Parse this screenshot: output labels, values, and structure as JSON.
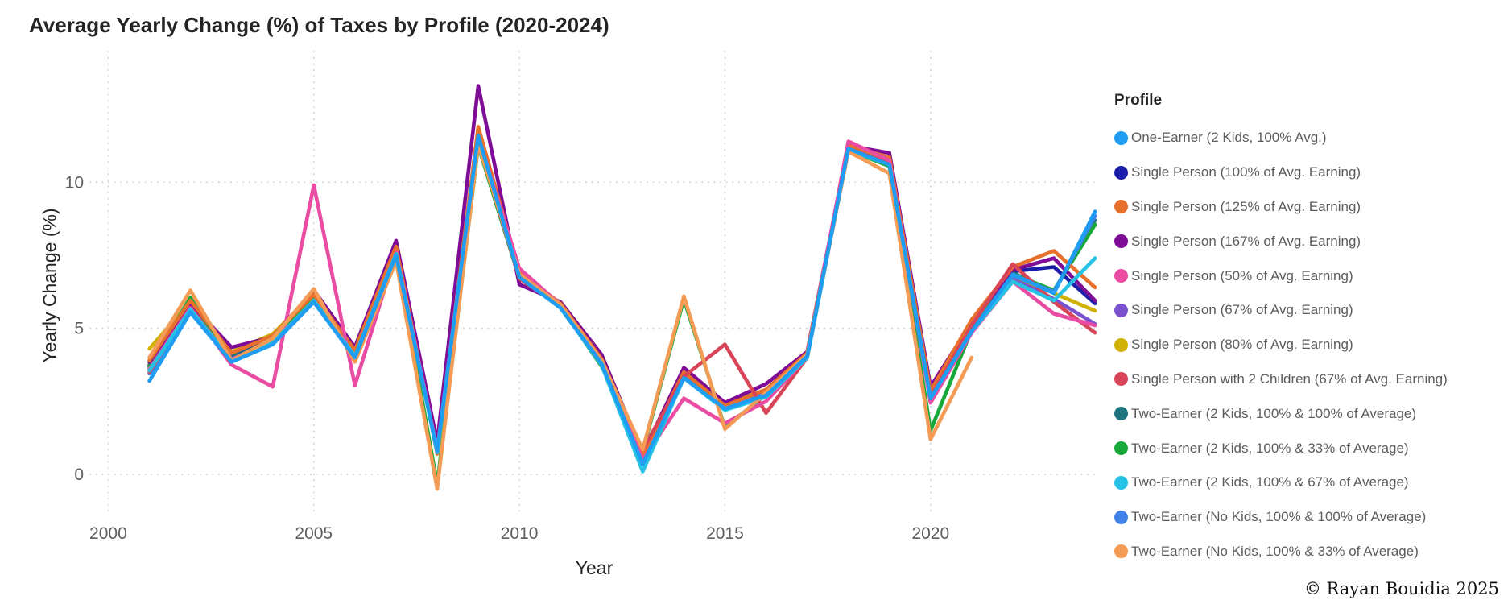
{
  "title": "Average Yearly Change (%) of Taxes by Profile (2020-2024)",
  "footer": "© Rayan Bouidia 2025",
  "axes": {
    "x_title": "Year",
    "y_title": "Yearly Change (%)",
    "x_ticks": [
      2000,
      2005,
      2010,
      2015,
      2020
    ],
    "y_ticks": [
      0,
      5,
      10
    ]
  },
  "legend": {
    "title": "Profile",
    "position": "right"
  },
  "colors": {
    "grid": "#d2d2d2",
    "tick_text": "#605e5c",
    "title_text": "#252423"
  },
  "chart_data": {
    "type": "line",
    "title": "Average Yearly Change (%) of Taxes by Profile (2020-2024)",
    "xlabel": "Year",
    "ylabel": "Yearly Change (%)",
    "x": [
      2001,
      2002,
      2003,
      2004,
      2005,
      2006,
      2007,
      2008,
      2009,
      2010,
      2011,
      2012,
      2013,
      2014,
      2015,
      2016,
      2017,
      2018,
      2019,
      2020,
      2021,
      2022,
      2023,
      2024
    ],
    "xlim": [
      1999.5,
      2024.6
    ],
    "ylim": [
      -2.1,
      14.5
    ],
    "grid": "dotted",
    "legend_position": "right",
    "draw_order": [
      1,
      8,
      5,
      6,
      9,
      11,
      3,
      2,
      7,
      4,
      10,
      12,
      0
    ],
    "series": [
      {
        "name": "One-Earner (2 Kids, 100% Avg.)",
        "color": "#1e9df3",
        "values": [
          3.2,
          5.55,
          3.85,
          4.45,
          5.9,
          4.0,
          7.5,
          0.8,
          11.6,
          6.75,
          5.7,
          3.8,
          0.35,
          3.3,
          2.25,
          2.7,
          4.05,
          11.15,
          10.6,
          2.6,
          4.9,
          6.85,
          6.2,
          9.0
        ]
      },
      {
        "name": "Single Person (100% of Avg. Earning)",
        "color": "#1b1ea9",
        "values": [
          3.7,
          5.8,
          4.05,
          4.6,
          6.05,
          4.15,
          7.7,
          0.9,
          11.5,
          6.85,
          5.8,
          3.9,
          0.55,
          3.45,
          2.3,
          2.85,
          4.1,
          11.2,
          10.8,
          2.8,
          5.0,
          6.95,
          7.1,
          5.85
        ]
      },
      {
        "name": "Single Person (125% of Avg. Earning)",
        "color": "#e8702d",
        "values": [
          3.9,
          5.95,
          4.15,
          4.75,
          6.15,
          4.25,
          7.8,
          0.7,
          11.9,
          6.9,
          5.85,
          3.95,
          0.65,
          3.5,
          2.35,
          2.9,
          4.15,
          11.25,
          10.85,
          2.85,
          5.3,
          7.1,
          7.65,
          6.4
        ]
      },
      {
        "name": "Single Person (167% of Avg. Earning)",
        "color": "#7e0c96",
        "values": [
          3.85,
          5.85,
          4.35,
          4.7,
          6.3,
          4.35,
          8.0,
          1.1,
          13.3,
          6.5,
          5.9,
          4.1,
          0.7,
          3.65,
          2.45,
          3.1,
          4.2,
          11.25,
          11.0,
          3.0,
          5.2,
          7.0,
          7.4,
          5.95
        ]
      },
      {
        "name": "Single Person (50% of Avg. Earning)",
        "color": "#ea4ca3",
        "values": [
          3.6,
          5.7,
          3.75,
          3.0,
          9.9,
          3.05,
          7.6,
          0.85,
          11.55,
          7.05,
          5.8,
          3.85,
          0.5,
          2.6,
          1.75,
          2.5,
          4.0,
          11.4,
          10.75,
          2.45,
          4.85,
          6.6,
          5.5,
          5.1
        ]
      },
      {
        "name": "Single Person (67% of Avg. Earning)",
        "color": "#7b52ce",
        "values": [
          3.65,
          5.75,
          3.95,
          4.55,
          6.0,
          4.1,
          7.65,
          0.85,
          11.45,
          6.8,
          5.75,
          3.8,
          0.5,
          3.4,
          2.25,
          2.8,
          4.05,
          11.2,
          10.7,
          2.7,
          4.95,
          6.75,
          6.0,
          5.15
        ]
      },
      {
        "name": "Single Person (80% of Avg. Earning)",
        "color": "#d1b204",
        "values": [
          4.3,
          5.9,
          4.2,
          4.8,
          6.2,
          4.3,
          7.75,
          0.95,
          11.55,
          6.9,
          5.85,
          3.95,
          0.6,
          3.5,
          2.4,
          2.9,
          4.15,
          11.2,
          10.75,
          2.75,
          5.05,
          6.8,
          6.2,
          5.6
        ]
      },
      {
        "name": "Single Person with 2 Children (67% of Avg. Earning)",
        "color": "#d84458",
        "values": [
          3.5,
          5.7,
          3.9,
          4.5,
          5.95,
          4.05,
          7.55,
          0.8,
          11.4,
          6.7,
          5.75,
          3.75,
          0.85,
          3.35,
          4.45,
          2.1,
          4.0,
          11.15,
          10.65,
          2.65,
          5.1,
          7.2,
          5.9,
          4.85
        ]
      },
      {
        "name": "Two-Earner (2 Kids, 100% & 100% of Average)",
        "color": "#207480",
        "values": [
          3.75,
          5.8,
          4.0,
          4.6,
          6.05,
          4.15,
          7.7,
          0.9,
          11.5,
          6.8,
          5.8,
          3.85,
          0.55,
          3.45,
          2.3,
          2.85,
          4.1,
          11.2,
          10.75,
          2.75,
          5.0,
          6.9,
          6.25,
          8.7
        ]
      },
      {
        "name": "Two-Earner (2 Kids, 100% & 33% of Average)",
        "color": "#16a838",
        "values": [
          3.7,
          6.05,
          3.85,
          4.55,
          6.0,
          4.1,
          7.6,
          -0.35,
          11.25,
          6.7,
          5.75,
          3.7,
          0.8,
          6.0,
          1.6,
          2.75,
          4.05,
          11.1,
          10.55,
          1.5,
          4.95,
          6.85,
          6.3,
          8.55
        ]
      },
      {
        "name": "Two-Earner (2 Kids, 100% & 67% of Average)",
        "color": "#25c2e5",
        "values": [
          3.55,
          5.65,
          3.9,
          4.5,
          5.95,
          4.05,
          7.55,
          0.75,
          11.45,
          6.75,
          5.7,
          3.75,
          0.1,
          3.3,
          2.2,
          2.65,
          4.0,
          11.1,
          10.6,
          2.6,
          4.9,
          6.6,
          5.95,
          7.4
        ]
      },
      {
        "name": "Two-Earner (No Kids, 100% & 100% of Average)",
        "color": "#4182e9",
        "values": [
          3.45,
          5.6,
          3.9,
          4.5,
          5.9,
          4.0,
          7.5,
          0.8,
          11.55,
          6.8,
          5.75,
          3.8,
          0.4,
          3.35,
          2.3,
          2.75,
          4.05,
          11.15,
          10.65,
          2.65,
          4.9,
          6.8,
          6.25,
          8.85
        ]
      },
      {
        "name": "Two-Earner (No Kids, 100% & 33% of Average)",
        "color": "#f49c55",
        "values": [
          4.0,
          6.3,
          3.9,
          4.65,
          6.35,
          3.85,
          7.3,
          -0.5,
          11.3,
          6.85,
          5.8,
          3.9,
          0.85,
          6.1,
          1.55,
          2.8,
          4.1,
          11.05,
          10.3,
          1.2,
          4.0,
          null,
          null,
          null
        ]
      }
    ]
  }
}
